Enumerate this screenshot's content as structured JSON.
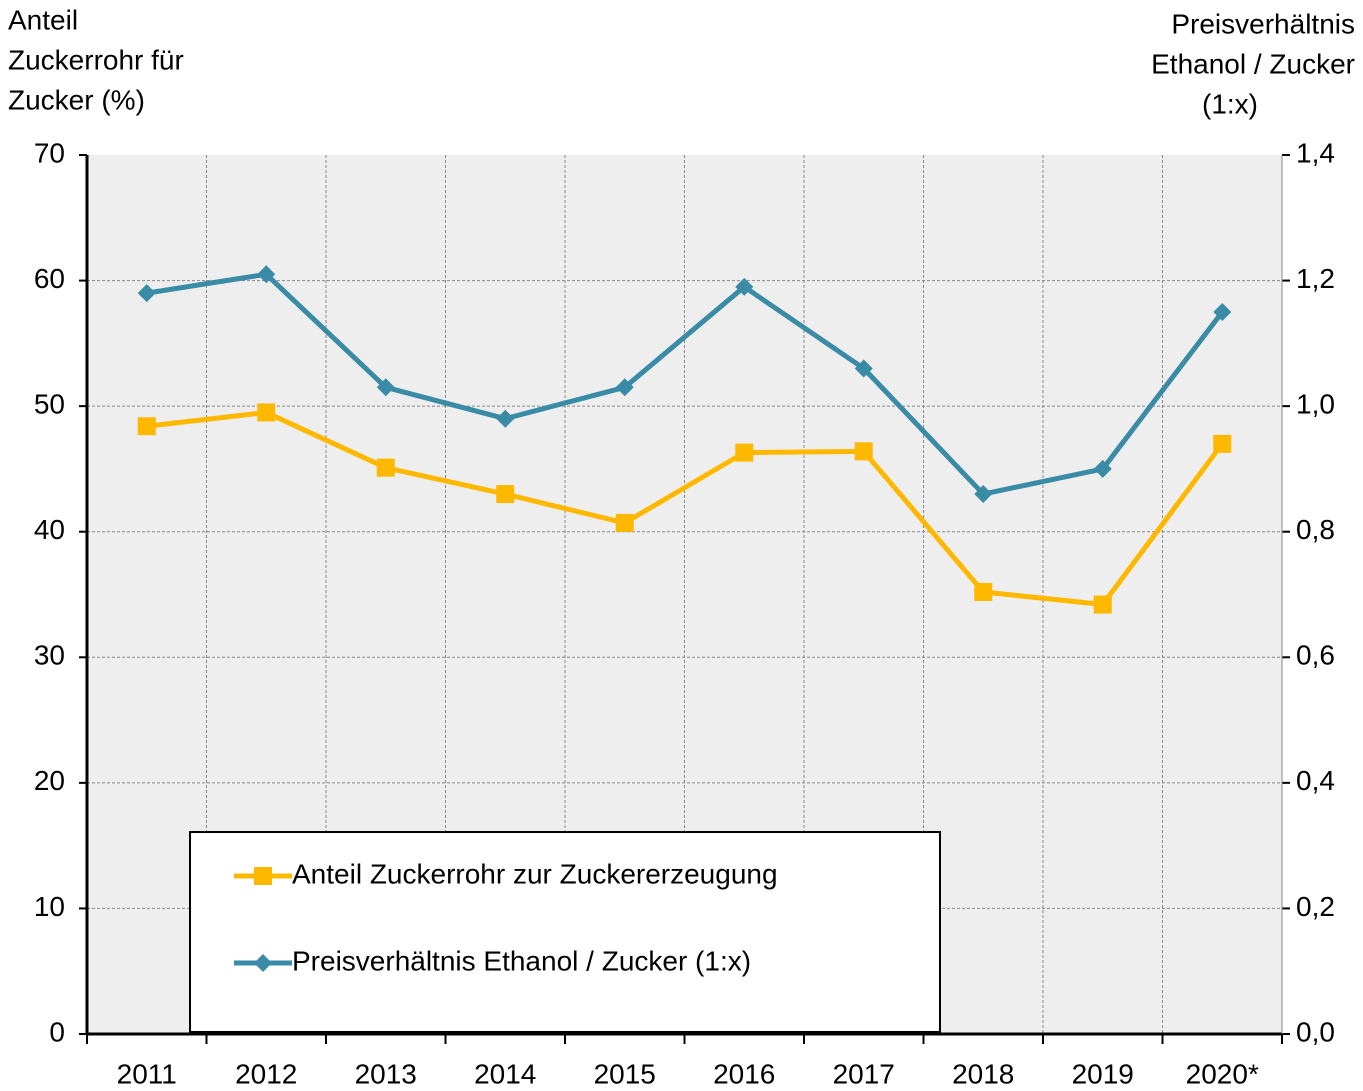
{
  "chart_data": {
    "type": "line",
    "y_label": [
      "Anteil",
      "Zuckerrohr für",
      "Zucker (%)"
    ],
    "y2_label": [
      "Preisverhältnis",
      "Ethanol / Zucker",
      "(1:x)"
    ],
    "categories": [
      "2011",
      "2012",
      "2013",
      "2014",
      "2015",
      "2016",
      "2017",
      "2018",
      "2019",
      "2020*"
    ],
    "series": [
      {
        "name": "Anteil Zuckerrohr zur Zuckererzeugung",
        "color": "#ffb800",
        "marker": "square",
        "values": [
          48.4,
          49.5,
          45.1,
          43.0,
          40.7,
          46.3,
          46.4,
          35.2,
          34.2,
          47.0
        ]
      },
      {
        "name": "Preisverhältnis Ethanol / Zucker (1:x)",
        "color": "#3a8ba6",
        "marker": "diamond",
        "axis": "y2",
        "values": [
          1.18,
          1.21,
          1.03,
          0.98,
          1.03,
          1.19,
          1.06,
          0.86,
          0.9,
          1.15
        ]
      }
    ],
    "ylim": [
      0,
      70
    ],
    "yticks": [
      0,
      10,
      20,
      30,
      40,
      50,
      60,
      70
    ],
    "y2lim": [
      0,
      1.4
    ],
    "y2ticks": [
      {
        "value": 0,
        "label": "0,0"
      },
      {
        "value": 0.2,
        "label": "0,2"
      },
      {
        "value": 0.4,
        "label": "0,4"
      },
      {
        "value": 0.6,
        "label": "0,6"
      },
      {
        "value": 0.8,
        "label": "0,8"
      },
      {
        "value": 1.0,
        "label": "1,0"
      },
      {
        "value": 1.2,
        "label": "1,2"
      },
      {
        "value": 1.4,
        "label": "1,4"
      }
    ],
    "grid": true,
    "legend": "lower left"
  }
}
